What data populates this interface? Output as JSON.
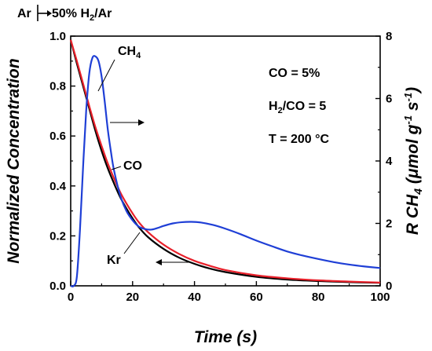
{
  "chart_data": {
    "type": "line",
    "xlabel": "Time (s)",
    "ylabel_left": "Normalized Concentration",
    "ylabel_right": "R CH4 (μmol g-1 s-1)",
    "xlim": [
      0,
      100
    ],
    "ylim_left": [
      0,
      1.0
    ],
    "ylim_right": [
      0,
      8
    ],
    "x_ticks": [
      "0",
      "20",
      "40",
      "60",
      "80",
      "100"
    ],
    "y_left_ticks": [
      "0.0",
      "0.2",
      "0.4",
      "0.6",
      "0.8",
      "1.0"
    ],
    "y_right_ticks": [
      "0",
      "2",
      "4",
      "6",
      "8"
    ],
    "grid": false,
    "header": {
      "from": "Ar",
      "to": "50% H",
      "to_sub": "2",
      "to_end": "/Ar"
    },
    "conditions": [
      {
        "main": "CO = 5%"
      },
      {
        "pre": "H",
        "sub": "2",
        "main": "/CO = 5"
      },
      {
        "main": "T = 200 °C"
      }
    ],
    "labels": {
      "ch4": {
        "main": "CH",
        "sub": "4"
      },
      "co": "CO",
      "kr": "Kr"
    },
    "series": [
      {
        "name": "CH4",
        "axis": "right",
        "color": "#1f3fd6",
        "x": [
          0,
          1,
          2,
          3,
          4,
          5,
          6,
          7,
          8,
          9,
          10,
          11,
          12,
          13,
          14,
          16,
          18,
          20,
          22,
          24,
          26,
          28,
          30,
          33,
          36,
          39,
          42,
          46,
          50,
          55,
          60,
          65,
          70,
          75,
          80,
          85,
          90,
          95,
          100
        ],
        "y": [
          0,
          0,
          0.3,
          1.8,
          3.8,
          5.6,
          6.8,
          7.3,
          7.35,
          7.2,
          6.7,
          5.9,
          5.0,
          4.3,
          3.7,
          2.9,
          2.4,
          2.1,
          1.9,
          1.82,
          1.8,
          1.85,
          1.92,
          2.0,
          2.04,
          2.05,
          2.03,
          1.95,
          1.83,
          1.65,
          1.45,
          1.27,
          1.1,
          0.97,
          0.86,
          0.76,
          0.68,
          0.62,
          0.57
        ]
      },
      {
        "name": "CO",
        "axis": "left",
        "color": "#e8202a",
        "x": [
          0,
          2,
          4,
          6,
          8,
          10,
          12,
          14,
          16,
          18,
          20,
          22,
          25,
          30,
          35,
          40,
          45,
          50,
          60,
          70,
          80,
          90,
          100
        ],
        "y": [
          0.985,
          0.9,
          0.81,
          0.72,
          0.635,
          0.56,
          0.49,
          0.43,
          0.375,
          0.33,
          0.29,
          0.255,
          0.215,
          0.165,
          0.128,
          0.1,
          0.08,
          0.063,
          0.042,
          0.03,
          0.022,
          0.017,
          0.013
        ]
      },
      {
        "name": "Kr",
        "axis": "left",
        "color": "#000000",
        "x": [
          0,
          2,
          4,
          6,
          8,
          10,
          12,
          14,
          16,
          18,
          20,
          22,
          25,
          30,
          35,
          40,
          45,
          50,
          60,
          70,
          80,
          90,
          100
        ],
        "y": [
          0.985,
          0.89,
          0.8,
          0.71,
          0.62,
          0.54,
          0.47,
          0.41,
          0.355,
          0.31,
          0.27,
          0.235,
          0.195,
          0.148,
          0.113,
          0.088,
          0.069,
          0.055,
          0.036,
          0.025,
          0.019,
          0.015,
          0.012
        ]
      }
    ]
  }
}
